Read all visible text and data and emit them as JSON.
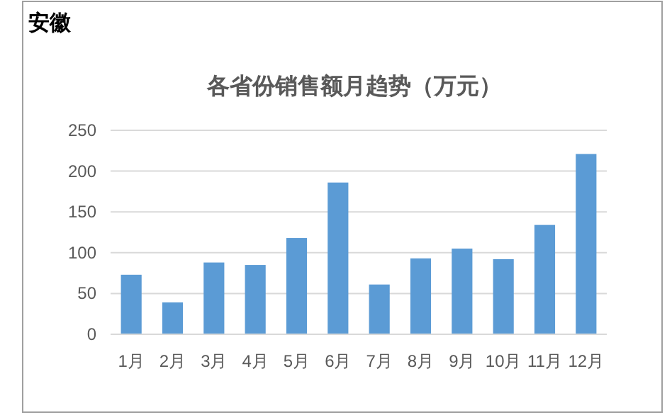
{
  "chart_data": {
    "type": "bar",
    "title": "各省份销售额月趋势（万元）",
    "subtitle": "安徽",
    "categories": [
      "1月",
      "2月",
      "3月",
      "4月",
      "5月",
      "6月",
      "7月",
      "8月",
      "9月",
      "10月",
      "11月",
      "12月"
    ],
    "values": [
      73,
      39,
      88,
      85,
      118,
      186,
      61,
      93,
      105,
      92,
      134,
      221
    ],
    "color": "#5b9bd5",
    "ylim": [
      0,
      250
    ],
    "yticks": [
      0,
      50,
      100,
      150,
      200,
      250
    ],
    "grid": "y"
  }
}
